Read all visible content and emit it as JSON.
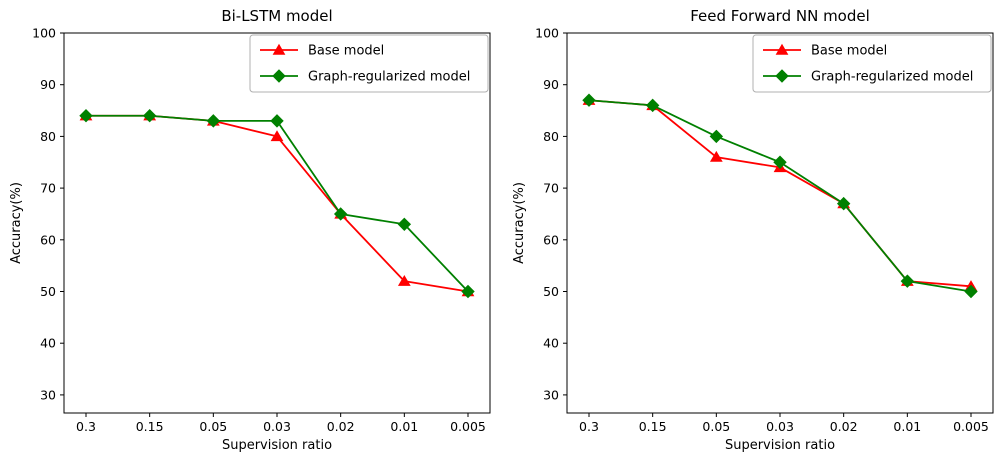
{
  "figure": {
    "background": "#ffffff",
    "text_color": "#000000",
    "axis_color": "#000000",
    "legend_border_color": "#b0b0b0"
  },
  "chart_data": [
    {
      "type": "line",
      "title": "Bi-LSTM model",
      "xlabel": "Supervision ratio",
      "ylabel": "Accuracy(%)",
      "categories": [
        "0.3",
        "0.15",
        "0.05",
        "0.03",
        "0.02",
        "0.01",
        "0.005"
      ],
      "yticks": [
        30,
        40,
        50,
        60,
        70,
        80,
        90,
        100
      ],
      "ylim": [
        26.5,
        100
      ],
      "grid": false,
      "legend_position": "upper right",
      "series": [
        {
          "name": "Base model",
          "color": "#ff0000",
          "marker": "triangle",
          "values": [
            84,
            84,
            83,
            80,
            65,
            52,
            50
          ]
        },
        {
          "name": "Graph-regularized model",
          "color": "#008000",
          "marker": "diamond",
          "values": [
            84,
            84,
            83,
            83,
            65,
            63,
            50
          ]
        }
      ]
    },
    {
      "type": "line",
      "title": "Feed Forward NN model",
      "xlabel": "Supervision ratio",
      "ylabel": "Accuracy(%)",
      "categories": [
        "0.3",
        "0.15",
        "0.05",
        "0.03",
        "0.02",
        "0.01",
        "0.005"
      ],
      "yticks": [
        30,
        40,
        50,
        60,
        70,
        80,
        90,
        100
      ],
      "ylim": [
        26.5,
        100
      ],
      "grid": false,
      "legend_position": "upper right",
      "series": [
        {
          "name": "Base model",
          "color": "#ff0000",
          "marker": "triangle",
          "values": [
            87,
            86,
            76,
            74,
            67,
            52,
            51
          ]
        },
        {
          "name": "Graph-regularized model",
          "color": "#008000",
          "marker": "diamond",
          "values": [
            87,
            86,
            80,
            75,
            67,
            52,
            50
          ]
        }
      ]
    }
  ]
}
